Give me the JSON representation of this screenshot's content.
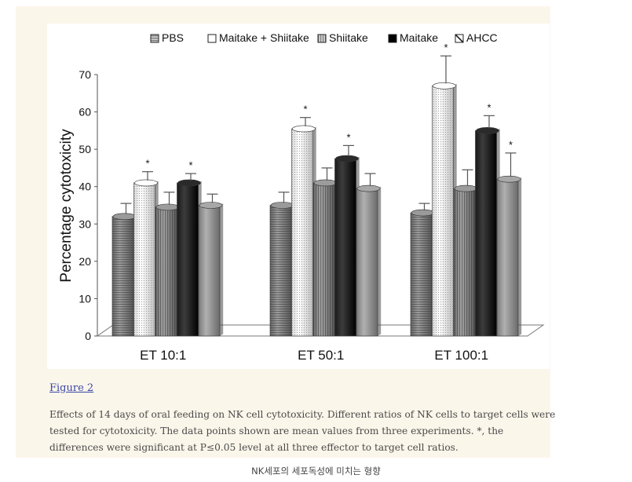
{
  "figure": {
    "link_text": "Figure 2",
    "caption": "Effects of 14 days of oral feeding on NK cell cytotoxicity. Different ratios of NK cells to target cells were tested for cytotoxicity. The data points shown are mean values from three experiments. *, the differences were significant at P≤0.05 level at all three effector to target cell ratios."
  },
  "footer_caption": "NK세포의 세포독성에 미치는 형향",
  "chart_data": {
    "type": "bar",
    "title": "",
    "xlabel": "",
    "ylabel": "Percentage cytotoxicity",
    "ylim": [
      0,
      70
    ],
    "yticks": [
      0,
      10,
      20,
      30,
      40,
      50,
      60,
      70
    ],
    "categories": [
      "ET 10:1",
      "ET 50:1",
      "ET 100:1"
    ],
    "legend_position": "top",
    "grid": false,
    "three_d": true,
    "series": [
      {
        "name": "PBS",
        "values": [
          32,
          35,
          33
        ],
        "errors": [
          3.5,
          3.5,
          2.5
        ],
        "significant": [
          false,
          false,
          false
        ],
        "pattern": "hstripe"
      },
      {
        "name": "Maitake + Shiitake",
        "values": [
          41,
          55.5,
          67
        ],
        "errors": [
          3,
          3,
          8
        ],
        "significant": [
          true,
          true,
          true
        ],
        "pattern": "white"
      },
      {
        "name": "Shiitake",
        "values": [
          34.5,
          41,
          39.5
        ],
        "errors": [
          4,
          4,
          5
        ],
        "significant": [
          false,
          false,
          false
        ],
        "pattern": "vstripe"
      },
      {
        "name": "Maitake",
        "values": [
          41,
          47.5,
          55
        ],
        "errors": [
          2.5,
          3.5,
          4
        ],
        "significant": [
          true,
          true,
          true
        ],
        "pattern": "black"
      },
      {
        "name": "AHCC",
        "values": [
          35,
          39.5,
          42
        ],
        "errors": [
          3,
          4,
          7
        ],
        "significant": [
          false,
          false,
          true
        ],
        "pattern": "gray"
      }
    ],
    "significance_marker": "*",
    "colors": {
      "PBS": "#8a8a8a",
      "Maitake + Shiitake": "#f2f2f2",
      "Shiitake": "#8c8c8c",
      "Maitake": "#0a0a0a",
      "AHCC": "#909090"
    }
  }
}
